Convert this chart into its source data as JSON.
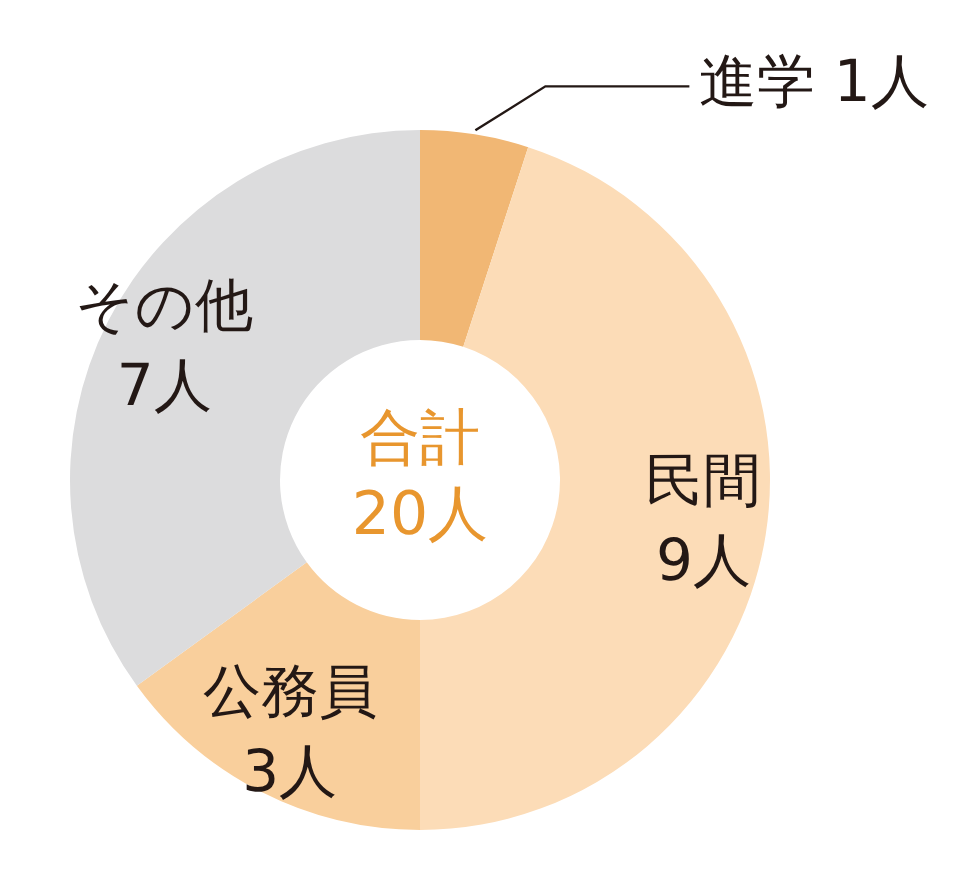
{
  "chart_data": {
    "type": "donut",
    "categories": [
      "進学",
      "民間",
      "公務員",
      "その他"
    ],
    "values": [
      1,
      9,
      3,
      7
    ],
    "value_labels": [
      "1人",
      "9人",
      "3人",
      "7人"
    ],
    "colors": [
      "#f1b774",
      "#fcdcb7",
      "#f9cf9c",
      "#dcdcdd"
    ],
    "annotations": [
      "合計",
      "20人"
    ],
    "legend": false
  }
}
